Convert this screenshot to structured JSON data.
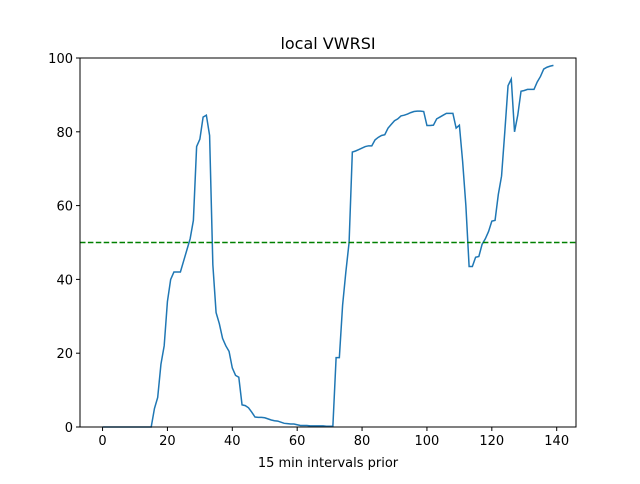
{
  "chart_data": {
    "type": "line",
    "title": "local VWRSI",
    "x_label": "15 min intervals prior",
    "x": [
      0,
      1,
      2,
      3,
      4,
      5,
      6,
      7,
      8,
      9,
      10,
      11,
      12,
      13,
      14,
      15,
      16,
      17,
      18,
      19,
      20,
      21,
      22,
      23,
      24,
      25,
      26,
      27,
      28,
      29,
      30,
      31,
      32,
      33,
      34,
      35,
      36,
      37,
      38,
      39,
      40,
      41,
      42,
      43,
      44,
      45,
      46,
      47,
      48,
      49,
      50,
      51,
      52,
      53,
      54,
      55,
      56,
      57,
      58,
      59,
      60,
      61,
      62,
      63,
      64,
      65,
      66,
      67,
      68,
      69,
      70,
      71,
      72,
      73,
      74,
      75,
      76,
      77,
      78,
      79,
      80,
      81,
      82,
      83,
      84,
      85,
      86,
      87,
      88,
      89,
      90,
      91,
      92,
      93,
      94,
      95,
      96,
      97,
      98,
      99,
      100,
      101,
      102,
      103,
      104,
      105,
      106,
      107,
      108,
      109,
      110,
      111,
      112,
      113,
      114,
      115,
      116,
      117,
      118,
      119,
      120,
      121,
      122,
      123,
      124,
      125,
      126,
      127,
      128,
      129,
      130,
      131,
      132,
      133,
      134,
      135,
      136,
      137,
      138,
      139
    ],
    "series": [
      {
        "color": "#1f77b4",
        "values": [
          0,
          0,
          0,
          0,
          0,
          0,
          0,
          0,
          0,
          0,
          0,
          0,
          0,
          0,
          0,
          0,
          5,
          8,
          17,
          22,
          34,
          40,
          42,
          42,
          42,
          45,
          48,
          51,
          56,
          76,
          78,
          84,
          84.5,
          79,
          44,
          31,
          28,
          24,
          22,
          20.5,
          16,
          14,
          13.5,
          6,
          5.8,
          5.2,
          4,
          2.7,
          2.6,
          2.6,
          2.5,
          2.2,
          1.9,
          1.7,
          1.6,
          1.3,
          1,
          0.9,
          0.8,
          0.8,
          0.6,
          0.4,
          0.4,
          0.4,
          0.3,
          0.3,
          0.3,
          0.3,
          0.3,
          0.2,
          0.2,
          0.2,
          18.8,
          18.8,
          33,
          42,
          50,
          74.5,
          74.8,
          75.2,
          75.6,
          76,
          76.2,
          76.2,
          77.8,
          78.5,
          79,
          79.2,
          81,
          82,
          83,
          83.5,
          84.3,
          84.5,
          84.8,
          85.2,
          85.5,
          85.6,
          85.6,
          85.5,
          81.7,
          81.7,
          81.8,
          83.5,
          84,
          84.5,
          85,
          85,
          85,
          81,
          81.8,
          72,
          60,
          43.5,
          43.5,
          46,
          46.2,
          49.5,
          51,
          53,
          55.8,
          56,
          63,
          68,
          80,
          92.5,
          94.3,
          80,
          84.5,
          91,
          91.2,
          91.5,
          91.5,
          91.5,
          93.5,
          95,
          97,
          97.5,
          97.8,
          98
        ]
      }
    ],
    "reference_line": {
      "y": 50,
      "color": "#008000"
    },
    "xlim": [
      -6.95,
      145.95
    ],
    "ylim": [
      0,
      100
    ],
    "xticks": [
      0,
      20,
      40,
      60,
      80,
      100,
      120,
      140
    ],
    "yticks": [
      0,
      20,
      40,
      60,
      80,
      100
    ]
  }
}
